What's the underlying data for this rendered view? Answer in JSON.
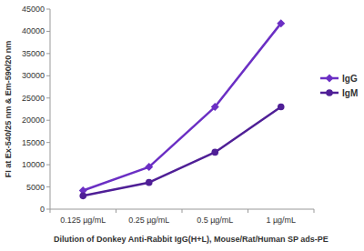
{
  "chart_data": {
    "type": "line",
    "x_label": "Dilution of Donkey Anti-Rabbit IgG(H+L), Mouse/Rat/Human SP ads-PE",
    "y_label": "FI at Ex-540/25 nm & Em-590/20 nm",
    "categories": [
      "0.125 µg/mL",
      "0.25 µg/mL",
      "0.5 µg/mL",
      "1 µg/mL"
    ],
    "series": [
      {
        "name": "IgG",
        "color": "#6b2fc4",
        "marker": "diamond",
        "values": [
          4200,
          9500,
          23000,
          41800
        ]
      },
      {
        "name": "IgM",
        "color": "#4f1f96",
        "marker": "circle",
        "values": [
          3000,
          6000,
          12800,
          23000
        ]
      }
    ],
    "ylim": [
      0,
      45000
    ],
    "yticks": [
      0,
      5000,
      10000,
      15000,
      20000,
      25000,
      30000,
      35000,
      40000,
      45000
    ],
    "grid": false,
    "legend": "right"
  }
}
